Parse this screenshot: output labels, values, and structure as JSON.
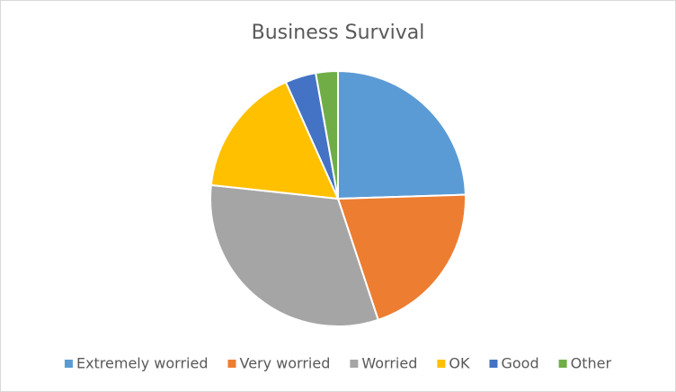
{
  "chart_data": {
    "type": "pie",
    "title": "Business Survival",
    "categories": [
      "Extremely worried",
      "Very worried",
      "Worried",
      "OK",
      "Good",
      "Other"
    ],
    "values": [
      24.5,
      20.4,
      31.8,
      16.6,
      3.9,
      2.8
    ],
    "colors": [
      "#5b9bd5",
      "#ed7d31",
      "#a5a5a5",
      "#ffc000",
      "#4472c4",
      "#70ad47"
    ],
    "legend": "bottom"
  }
}
